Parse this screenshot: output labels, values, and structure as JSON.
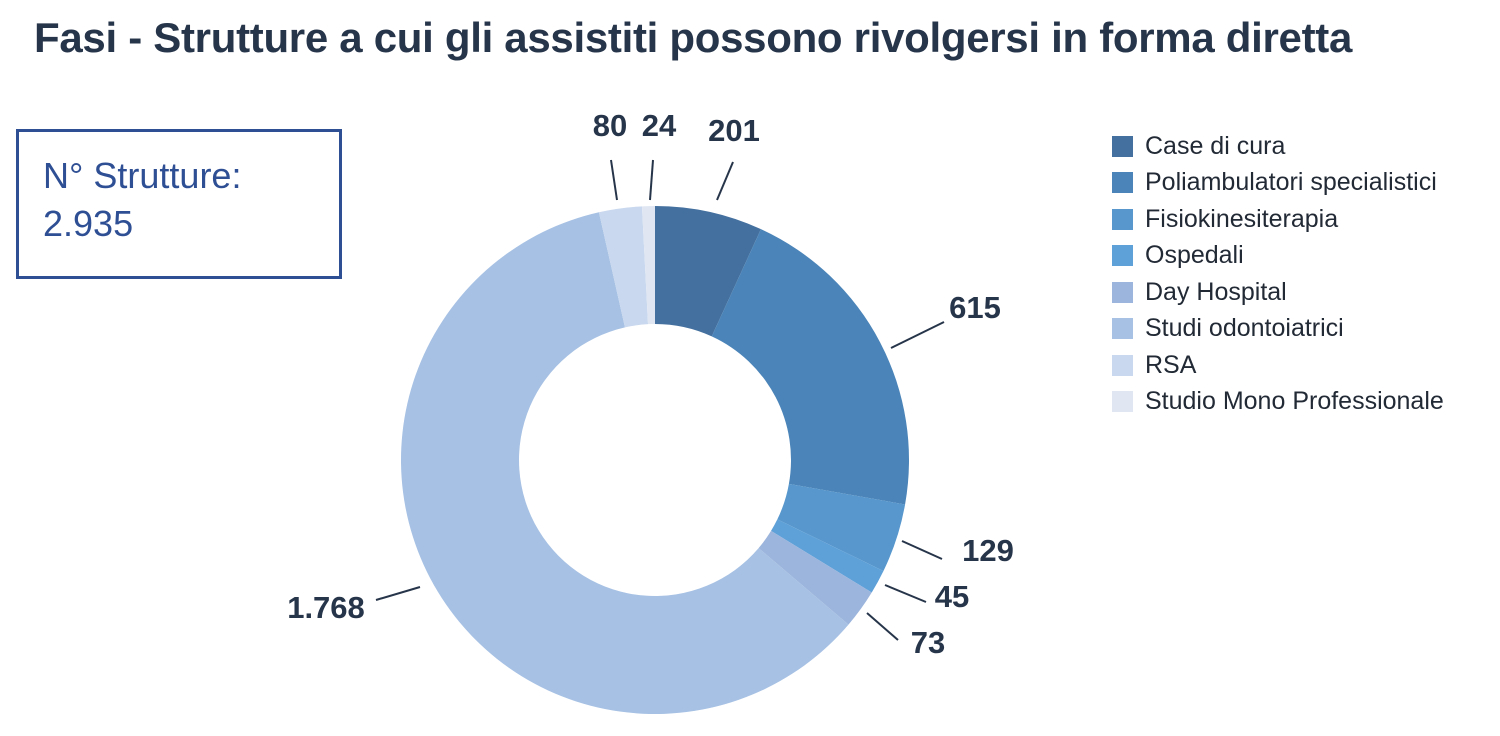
{
  "title": "Fasi - Strutture a cui gli assistiti possono rivolgersi in forma diretta",
  "summary": {
    "label": "N° Strutture:",
    "value": "2.935"
  },
  "chart_data": {
    "type": "pie",
    "donut": true,
    "legend_position": "right",
    "categories": [
      "Case di cura",
      "Poliambulatori specialistici",
      "Fisiokinesiterapia",
      "Ospedali",
      "Day Hospital",
      "Studi odontoiatrici",
      "RSA",
      "Studio Mono Professionale"
    ],
    "values": [
      201,
      615,
      129,
      45,
      73,
      1768,
      80,
      24
    ],
    "value_labels": [
      "201",
      "615",
      "129",
      "45",
      "73",
      "1.768",
      "80",
      "24"
    ],
    "colors": [
      "#44709f",
      "#4a84b8",
      "#5797cd",
      "#5ea0d8",
      "#9cb5dc",
      "#a6c1e4",
      "#c9d8ee",
      "#e0e7f3"
    ]
  }
}
